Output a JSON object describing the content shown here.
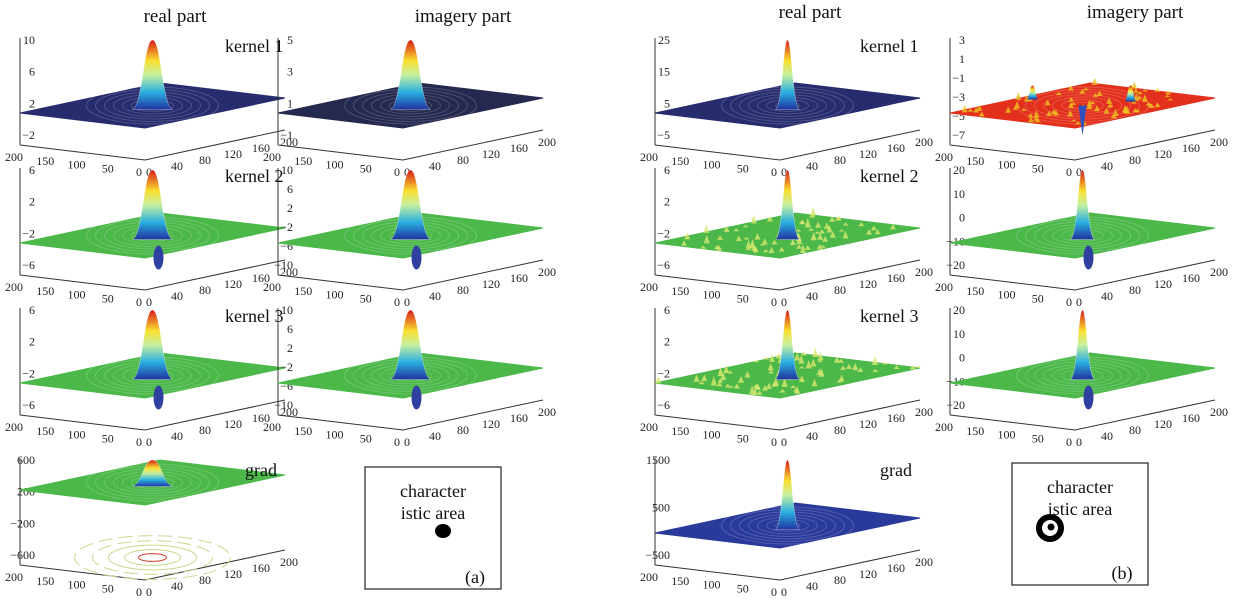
{
  "x_ticks": [
    "0",
    "40",
    "80",
    "120",
    "160",
    "200"
  ],
  "y_ticks": [
    "200",
    "150",
    "100",
    "50",
    "0"
  ],
  "panels": [
    {
      "label": "(a)",
      "column_titles": [
        "real part",
        "imagery part"
      ],
      "rows": [
        {
          "label": "kernel 1",
          "real": {
            "zticks": [
              "10",
              "6",
              "2",
              "−2"
            ]
          },
          "imag": {
            "zticks": [
              "5",
              "3",
              "1",
              "−1"
            ]
          }
        },
        {
          "label": "kernel 2",
          "real": {
            "zticks": [
              "6",
              "2",
              "−2",
              "−6"
            ]
          },
          "imag": {
            "zticks": [
              "10",
              "6",
              "2",
              "−2",
              "−6",
              "−10"
            ]
          }
        },
        {
          "label": "kernel 3",
          "real": {
            "zticks": [
              "6",
              "2",
              "−2",
              "−6"
            ]
          },
          "imag": {
            "zticks": [
              "10",
              "6",
              "2",
              "−2",
              "−6",
              "−10"
            ]
          }
        }
      ],
      "grad": {
        "label": "grad",
        "zticks": [
          "600",
          "200",
          "−200",
          "−600"
        ]
      },
      "area_label": [
        "character",
        "istic area"
      ]
    },
    {
      "label": "(b)",
      "column_titles": [
        "real part",
        "imagery part"
      ],
      "rows": [
        {
          "label": "kernel 1",
          "real": {
            "zticks": [
              "25",
              "15",
              "5",
              "−5"
            ]
          },
          "imag": {
            "zticks": [
              "3",
              "1",
              "−1",
              "−3",
              "−5",
              "−7"
            ]
          }
        },
        {
          "label": "kernel 2",
          "real": {
            "zticks": [
              "6",
              "2",
              "−2",
              "−6"
            ]
          },
          "imag": {
            "zticks": [
              "20",
              "10",
              "0",
              "−10",
              "−20"
            ]
          }
        },
        {
          "label": "kernel 3",
          "real": {
            "zticks": [
              "6",
              "2",
              "−2",
              "−6"
            ]
          },
          "imag": {
            "zticks": [
              "20",
              "10",
              "0",
              "−10",
              "−20"
            ]
          }
        }
      ],
      "grad": {
        "label": "grad",
        "zticks": [
          "1500",
          "500",
          "−500"
        ]
      },
      "area_label": [
        "character",
        "istic area"
      ]
    }
  ]
}
